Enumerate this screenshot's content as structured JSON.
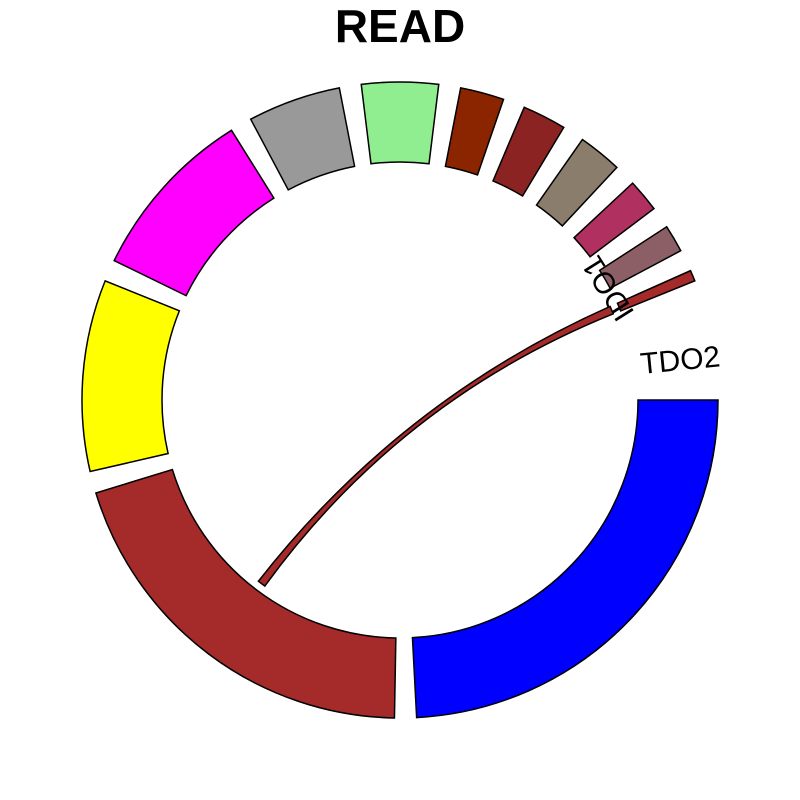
{
  "chart_data": {
    "type": "chord",
    "title": "READ",
    "sectors": [
      {
        "name": "TDO2",
        "color": "#0000ff",
        "value": 87
      },
      {
        "name": null,
        "color": "#a52a2a",
        "value": 72
      },
      {
        "name": null,
        "color": "#ffff00",
        "value": 35
      },
      {
        "name": null,
        "color": "#ff00ff",
        "value": 32
      },
      {
        "name": null,
        "color": "#999999",
        "value": 17
      },
      {
        "name": null,
        "color": "#90ee90",
        "value": 14
      },
      {
        "name": null,
        "color": "#8b2500",
        "value": 8
      },
      {
        "name": null,
        "color": "#8b2323",
        "value": 8
      },
      {
        "name": null,
        "color": "#8b7d6b",
        "value": 8
      },
      {
        "name": null,
        "color": "#b03060",
        "value": 6
      },
      {
        "name": null,
        "color": "#8b5f65",
        "value": 5
      },
      {
        "name": "IDO1",
        "color": "#a52a2a",
        "value": 2
      }
    ],
    "links": [
      {
        "from": 11,
        "to": 1,
        "value": 2,
        "color": "#a52a2a"
      }
    ]
  }
}
